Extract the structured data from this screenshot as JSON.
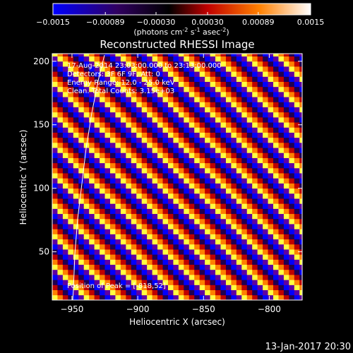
{
  "chart_data": {
    "type": "heatmap",
    "title": "Reconstructed RHESSI Image",
    "xlabel": "Heliocentric X (arcsec)",
    "ylabel": "Heliocentric Y (arcsec)",
    "xlim": [
      -965,
      -775
    ],
    "ylim": [
      12,
      206
    ],
    "x_ticks": [
      -950,
      -900,
      -850,
      -800
    ],
    "y_ticks": [
      50,
      100,
      150,
      200
    ],
    "colorbar": {
      "ticks": [
        "-0.0015",
        "-0.00089",
        "-0.00030",
        "0.00030",
        "0.00089",
        "0.0015"
      ],
      "range": [
        -0.0015,
        0.0015
      ],
      "unit_main": "(photons cm",
      "unit_exp1": "-2",
      "unit_mid": " s",
      "unit_exp2": "-1",
      "unit_mid2": " asec",
      "unit_exp3": "-2",
      "unit_close": ")"
    },
    "annotations": [
      "17-Aug-2014 23:03:00.000 to 23:13:00.000",
      "Detectors: 3F 6F 9F, Att: 0",
      "Energy Range: 12.0 - 25.0 keV",
      "Clean.  Total Counts: 3.15e+03"
    ],
    "peak_label": "Position of Peak = [-818,52]",
    "pattern": {
      "pixel_size_arcsec": 4,
      "stripe_period_cells": 6,
      "stripe_direction": "diagonal, rising to the upper-left",
      "color_order": [
        "#ffff40",
        "#ff8000",
        "#c00000",
        "#200050",
        "#0000ff",
        "#6000a0"
      ]
    }
  },
  "footer": {
    "timestamp": "13-Jan-2017 20:30"
  }
}
